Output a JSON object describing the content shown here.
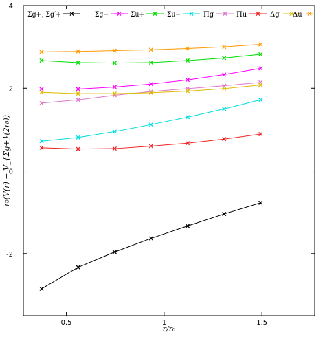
{
  "chart_data": {
    "type": "line",
    "title": "",
    "xlabel": "r/r₀",
    "ylabel": "r₀(V(r) − V_{Σg+}(2r₀))",
    "xlim": [
      0.28,
      1.77
    ],
    "ylim": [
      -3.5,
      4.0
    ],
    "x_ticks": [
      0.5,
      1,
      1.5
    ],
    "x_tick_labels": [
      "0.5",
      "1",
      "1.5"
    ],
    "y_ticks": [
      -2,
      0,
      2,
      4
    ],
    "y_tick_labels": [
      "-2",
      "0",
      "2",
      "4"
    ],
    "grid": false,
    "legend_position": "top",
    "marker": "cross",
    "series": [
      {
        "name": "Σg+, Σg′+",
        "color": "#000000",
        "x": [
          0.373,
          0.56,
          0.747,
          0.933,
          1.12,
          1.307,
          1.493
        ],
        "y": [
          -2.85,
          -2.33,
          -1.96,
          -1.63,
          -1.33,
          -1.04,
          -0.77
        ]
      },
      {
        "name": "Σg−",
        "color": "#ff00ff",
        "x": [
          0.373,
          0.56,
          0.747,
          0.933,
          1.12,
          1.307,
          1.493
        ],
        "y": [
          1.98,
          1.98,
          2.03,
          2.1,
          2.2,
          2.33,
          2.48
        ]
      },
      {
        "name": "Σu+",
        "color": "#00dd00",
        "x": [
          0.373,
          0.56,
          0.747,
          0.933,
          1.12,
          1.307,
          1.493
        ],
        "y": [
          2.67,
          2.62,
          2.61,
          2.62,
          2.67,
          2.73,
          2.82
        ]
      },
      {
        "name": "Σu−",
        "color": "#00dddd",
        "x": [
          0.373,
          0.56,
          0.747,
          0.933,
          1.12,
          1.307,
          1.493
        ],
        "y": [
          0.72,
          0.81,
          0.95,
          1.12,
          1.3,
          1.5,
          1.72
        ]
      },
      {
        "name": "Πg",
        "color": "#dd77cc",
        "x": [
          0.373,
          0.56,
          0.747,
          0.933,
          1.12,
          1.307,
          1.493
        ],
        "y": [
          1.64,
          1.72,
          1.83,
          1.92,
          1.99,
          2.06,
          2.14
        ]
      },
      {
        "name": "Πu",
        "color": "#ee2222",
        "x": [
          0.373,
          0.56,
          0.747,
          0.933,
          1.12,
          1.307,
          1.493
        ],
        "y": [
          0.56,
          0.53,
          0.54,
          0.6,
          0.67,
          0.77,
          0.89
        ]
      },
      {
        "name": "Δg",
        "color": "#ddbb00",
        "x": [
          0.373,
          0.56,
          0.747,
          0.933,
          1.12,
          1.307,
          1.493
        ],
        "y": [
          1.9,
          1.87,
          1.87,
          1.89,
          1.93,
          1.99,
          2.08
        ]
      },
      {
        "name": "Δu",
        "color": "#ff9900",
        "x": [
          0.373,
          0.56,
          0.747,
          0.933,
          1.12,
          1.307,
          1.493
        ],
        "y": [
          2.88,
          2.89,
          2.91,
          2.93,
          2.96,
          3.0,
          3.06
        ]
      }
    ]
  }
}
